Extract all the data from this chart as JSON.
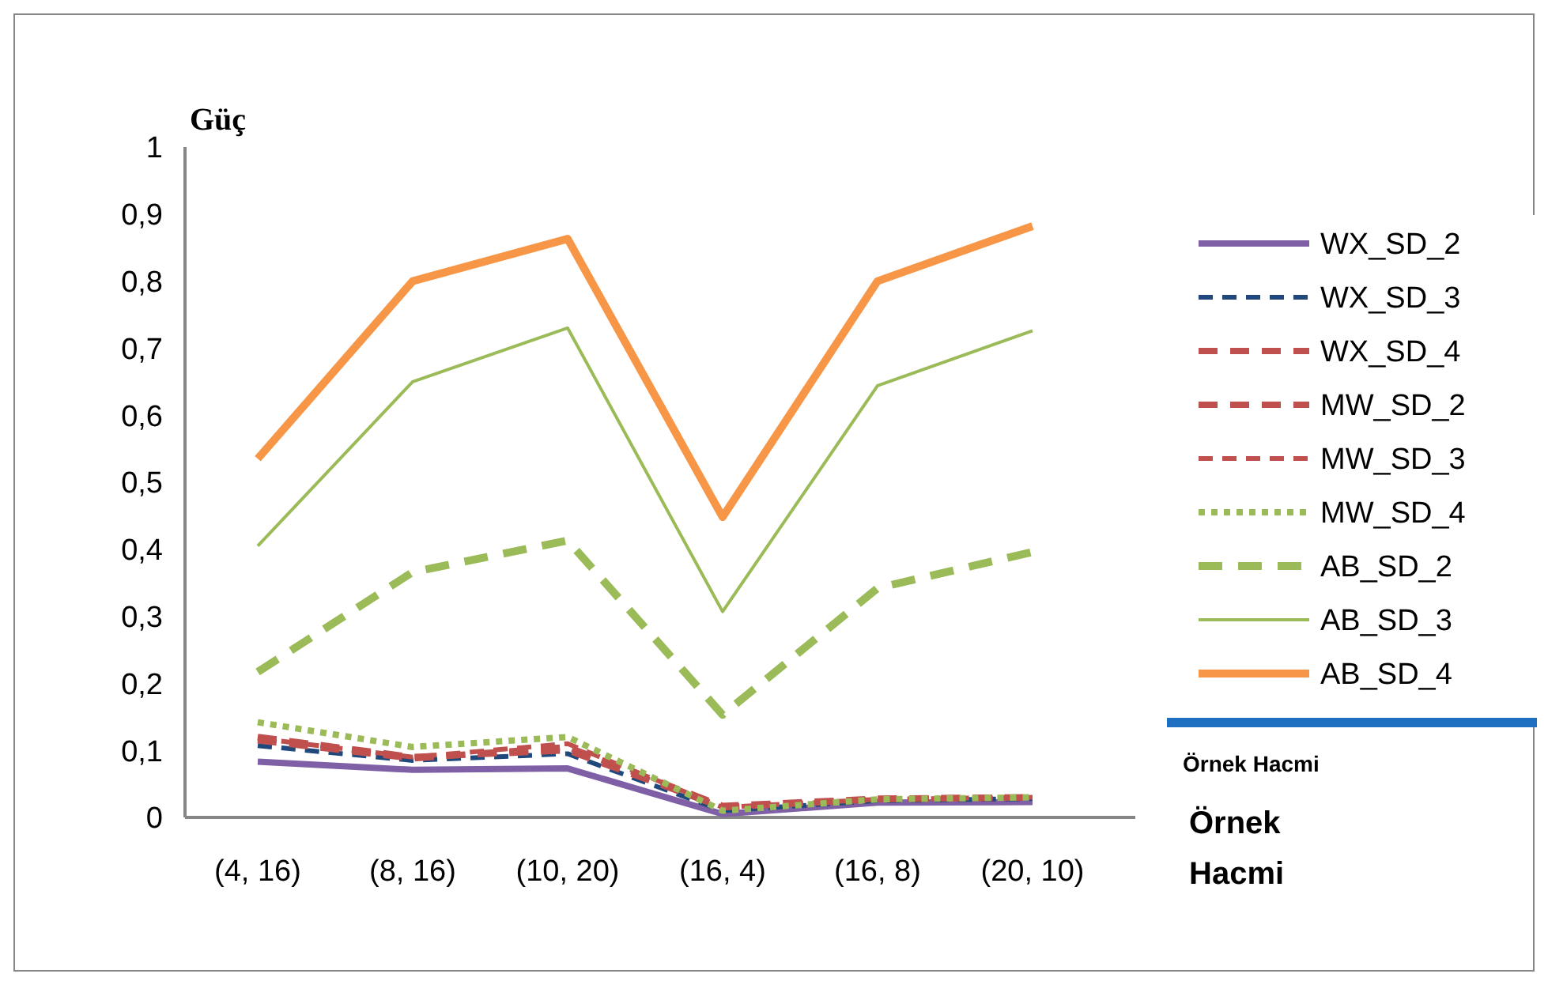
{
  "chart_data": {
    "type": "line",
    "ylabel": "Güç",
    "xlabel": "Örnek Hacmi",
    "annotations": [
      "Örnek Hacmi"
    ],
    "categories": [
      "(4, 16)",
      "(8, 16)",
      "(10, 20)",
      "(16, 4)",
      "(16, 8)",
      "(20, 10)"
    ],
    "ylim": [
      0,
      1
    ],
    "yticks": [
      0,
      {
        "value": 0.1,
        "label": "0,1"
      },
      {
        "value": 0.2,
        "label": "0,2"
      },
      {
        "value": 0.3,
        "label": "0,3"
      },
      {
        "value": 0.4,
        "label": "0,4"
      },
      {
        "value": 0.5,
        "label": "0,5"
      },
      {
        "value": 0.6,
        "label": "0,6"
      },
      {
        "value": 0.7,
        "label": "0,7"
      },
      {
        "value": 0.8,
        "label": "0,8"
      },
      {
        "value": 0.9,
        "label": "0,9"
      },
      1
    ],
    "grid": false,
    "legend": "right",
    "series": [
      {
        "name": "WX_SD_2",
        "color": "#7f5fa5",
        "line_style": "solid",
        "values": [
          0.083,
          0.071,
          0.073,
          0.005,
          0.022,
          0.023
        ]
      },
      {
        "name": "WX_SD_3",
        "color": "#1f497d",
        "line_style": "dashed",
        "values": [
          0.107,
          0.085,
          0.095,
          0.01,
          0.025,
          0.028
        ]
      },
      {
        "name": "WX_SD_4",
        "color": "#c0504d",
        "line_style": "dashed",
        "values": [
          0.12,
          0.09,
          0.1,
          0.015,
          0.027,
          0.03
        ]
      },
      {
        "name": "MW_SD_2",
        "color": "#c0504d",
        "line_style": "dashed",
        "values": [
          0.115,
          0.088,
          0.105,
          0.017,
          0.028,
          0.03
        ]
      },
      {
        "name": "MW_SD_3",
        "color": "#c0504d",
        "line_style": "dashed",
        "values": [
          0.118,
          0.09,
          0.11,
          0.015,
          0.027,
          0.03
        ]
      },
      {
        "name": "MW_SD_4",
        "color": "#9bbb59",
        "line_style": "dotted",
        "values": [
          0.142,
          0.105,
          0.12,
          0.01,
          0.027,
          0.03
        ]
      },
      {
        "name": "AB_SD_2",
        "color": "#9bbb59",
        "line_style": "dashed",
        "values": [
          0.217,
          0.366,
          0.413,
          0.153,
          0.342,
          0.396
        ]
      },
      {
        "name": "AB_SD_3",
        "color": "#9bbb59",
        "line_style": "solid",
        "values": [
          0.405,
          0.65,
          0.73,
          0.307,
          0.644,
          0.726
        ]
      },
      {
        "name": "AB_SD_4",
        "color": "#f79646",
        "line_style": "solid",
        "values": [
          0.535,
          0.8,
          0.863,
          0.448,
          0.8,
          0.882
        ]
      }
    ]
  }
}
